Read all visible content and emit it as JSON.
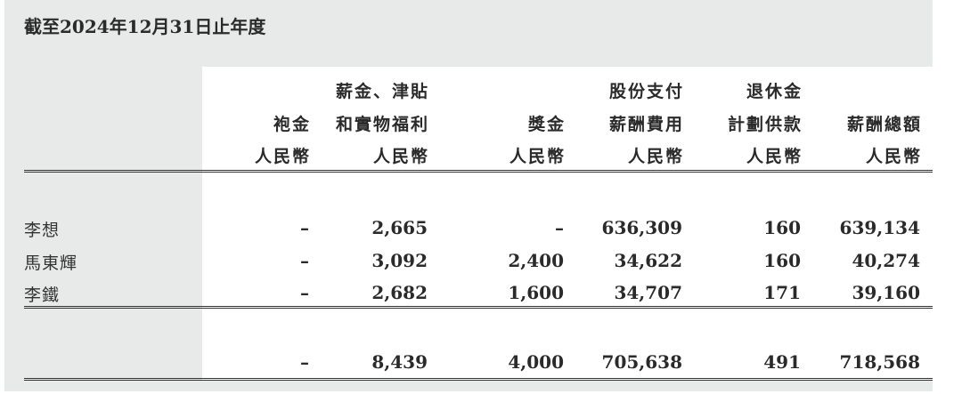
{
  "title": "截至2024年12月31日止年度",
  "columns": [
    {
      "lines": [
        "",
        "袍金",
        "人民幣"
      ]
    },
    {
      "lines": [
        "薪金、津貼",
        "和實物福利",
        "人民幣"
      ]
    },
    {
      "lines": [
        "",
        "獎金",
        "人民幣"
      ]
    },
    {
      "lines": [
        "股份支付",
        "薪酬費用",
        "人民幣"
      ]
    },
    {
      "lines": [
        "退休金",
        "計劃供款",
        "人民幣"
      ]
    },
    {
      "lines": [
        "",
        "薪酬總額",
        "人民幣"
      ]
    }
  ],
  "rows": [
    {
      "name": "李想",
      "values": [
        "–",
        "2,665",
        "–",
        "636,309",
        "160",
        "639,134"
      ]
    },
    {
      "name": "馬東輝",
      "values": [
        "–",
        "3,092",
        "2,400",
        "34,622",
        "160",
        "40,274"
      ]
    },
    {
      "name": "李鐵",
      "values": [
        "–",
        "2,682",
        "1,600",
        "34,707",
        "171",
        "39,160"
      ]
    }
  ],
  "total": {
    "values": [
      "–",
      "8,439",
      "4,000",
      "705,638",
      "491",
      "718,568"
    ]
  }
}
